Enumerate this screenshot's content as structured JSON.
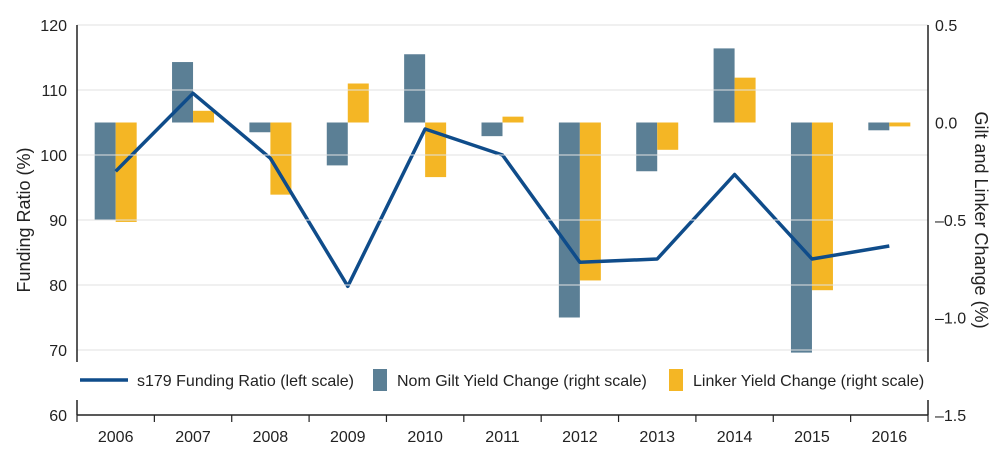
{
  "chart_data": {
    "type": "bar+line",
    "categories": [
      "2006",
      "2007",
      "2008",
      "2009",
      "2010",
      "2011",
      "2012",
      "2013",
      "2014",
      "2015",
      "2016"
    ],
    "series": [
      {
        "name": "s179 Funding Ratio (left scale)",
        "type": "line",
        "axis": "left",
        "color": "#0f4c8a",
        "values": [
          97.5,
          109.5,
          99.5,
          79.8,
          104.0,
          100.0,
          83.5,
          84.0,
          97.0,
          84.0,
          86.0
        ]
      },
      {
        "name": "Nom Gilt Yield Change (right scale)",
        "type": "bar",
        "axis": "right",
        "color": "#5b7f95",
        "values": [
          -0.5,
          0.31,
          -0.05,
          -0.22,
          0.35,
          -0.07,
          -1.0,
          -0.25,
          0.38,
          -1.18,
          -0.04
        ]
      },
      {
        "name": "Linker Yield Change (right scale)",
        "type": "bar",
        "axis": "right",
        "color": "#f4b625",
        "values": [
          -0.51,
          0.06,
          -0.37,
          0.2,
          -0.28,
          0.03,
          -0.81,
          -0.14,
          0.23,
          -0.86,
          -0.02
        ]
      }
    ],
    "y_left": {
      "label": "Funding Ratio (%)",
      "range": [
        60,
        120
      ],
      "ticks": [
        "60",
        "70",
        "80",
        "90",
        "100",
        "110",
        "120"
      ]
    },
    "y_right": {
      "label": "Gilt and Linker Change (%)",
      "range": [
        -1.5,
        0.5
      ],
      "ticks": [
        "-1.5",
        "-1.0",
        "-0.5",
        "0.0",
        "0.5"
      ]
    },
    "legend_position": "bottom"
  }
}
